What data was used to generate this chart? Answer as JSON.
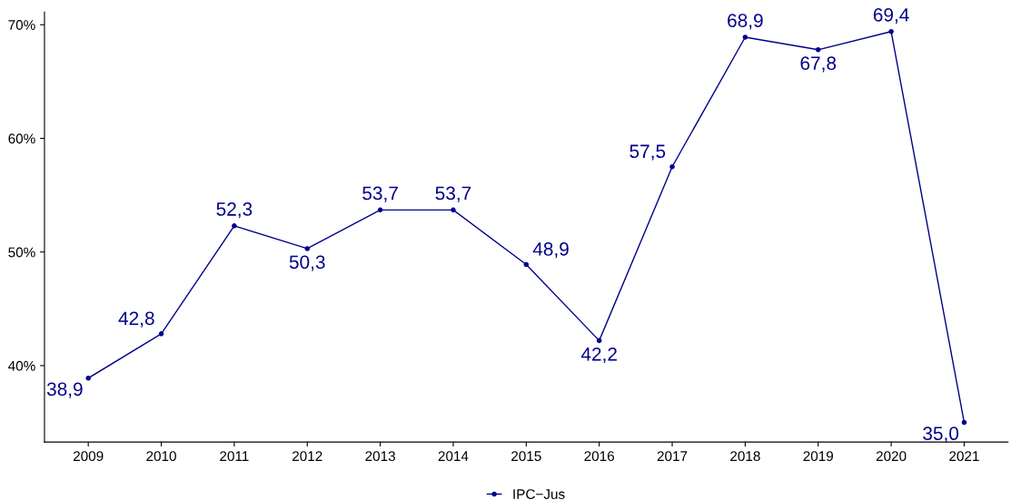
{
  "chart_data": {
    "type": "line",
    "categories": [
      "2009",
      "2010",
      "2011",
      "2012",
      "2013",
      "2014",
      "2015",
      "2016",
      "2017",
      "2018",
      "2019",
      "2020",
      "2021"
    ],
    "series": [
      {
        "name": "IPC−Jus",
        "color": "#00008b",
        "values": [
          38.9,
          42.8,
          52.3,
          50.3,
          53.7,
          53.7,
          48.9,
          42.2,
          57.5,
          68.9,
          67.8,
          69.4,
          35.0
        ],
        "value_labels": [
          "38,9",
          "42,8",
          "52,3",
          "50,3",
          "53,7",
          "53,7",
          "48,9",
          "42,2",
          "57,5",
          "68,9",
          "67,8",
          "69,4",
          "35,0"
        ]
      }
    ],
    "ylim": [
      33.28,
      71.12
    ],
    "yticks": [
      {
        "value": 40,
        "label": "40%"
      },
      {
        "value": 50,
        "label": "50%"
      },
      {
        "value": 60,
        "label": "60%"
      },
      {
        "value": 70,
        "label": "70%"
      }
    ],
    "marker": "circle",
    "line_style": "solid",
    "grid": false,
    "legend": "bottom"
  }
}
